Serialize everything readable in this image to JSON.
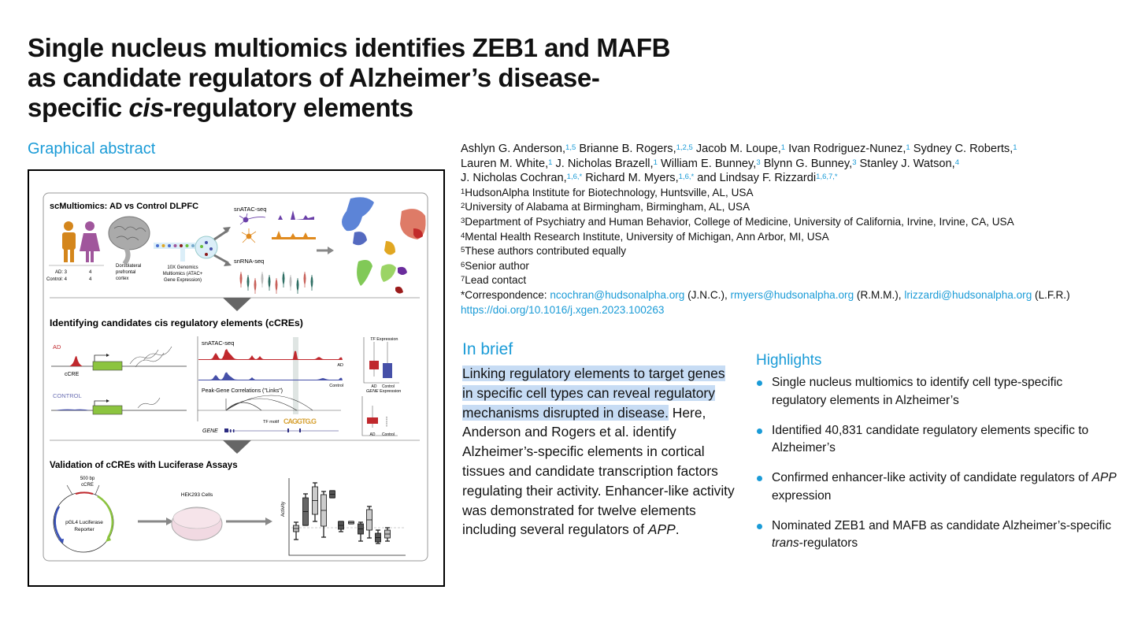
{
  "title": {
    "line1": "Single nucleus multiomics identifies ZEB1 and MAFB",
    "line2": "as candidate regulators of Alzheimer’s disease-",
    "line3_pre": "specific ",
    "line3_italic": "cis",
    "line3_post": "-regulatory elements"
  },
  "graphical_abstract": {
    "label": "Graphical abstract",
    "panel1": {
      "title": "scMultiomics: AD vs Control DLPFC",
      "ad_row": "AD:  3",
      "ad_val2": "4",
      "control_row": "Control:  4",
      "control_val2": "4",
      "brain_label": [
        "Dorsolateral",
        "prefrontal",
        "cortex"
      ],
      "device_label": [
        "10X Genomics",
        "Multiomics (ATAC+",
        "Gene Expression)"
      ],
      "atac": "snATAC-seq",
      "rna": "snRNA-seq"
    },
    "panel2": {
      "title": "Identifying candidates cis regulatory elements (cCREs)",
      "ad": "AD",
      "ccre": "cCRE",
      "control": "CONTROL",
      "atac": "snATAC-seq",
      "track_ad": "AD",
      "track_control": "Control",
      "links": "Peak-Gene Correlations (\"Links\")",
      "tf_motif": "TF motif",
      "motif_letters": "CAGGTG.G",
      "gene": "GENE",
      "tf_expr_italic": "TF",
      "tf_expr": " Expression",
      "gene_expr_italic": "GENE",
      "gene_expr": " Expression",
      "x_ad": "AD",
      "x_control": "Control"
    },
    "panel3": {
      "title": "Validation of cCREs with Luciferase Assays",
      "insert": [
        "500 bp",
        "cCRE"
      ],
      "plasmid": [
        "pGL4 Luciferase",
        "Reporter"
      ],
      "cells": "HEK293 Cells",
      "ylabel": "Activity"
    },
    "colors": {
      "male": "#d4861c",
      "female": "#a0569c",
      "ad": "#c0282d",
      "control": "#4650a8",
      "gene_box": "#8cc43f"
    }
  },
  "authors": [
    {
      "name": "Ashlyn G. Anderson,",
      "sup": "1,5"
    },
    {
      "name": "Brianne B. Rogers,",
      "sup": "1,2,5"
    },
    {
      "name": "Jacob M. Loupe,",
      "sup": "1"
    },
    {
      "name": "Ivan Rodriguez-Nunez,",
      "sup": "1"
    },
    {
      "name": "Sydney C. Roberts,",
      "sup": "1"
    },
    {
      "name": "Lauren M. White,",
      "sup": "1"
    },
    {
      "name": "J. Nicholas Brazell,",
      "sup": "1"
    },
    {
      "name": "William E. Bunney,",
      "sup": "3"
    },
    {
      "name": "Blynn G. Bunney,",
      "sup": "3"
    },
    {
      "name": "Stanley J. Watson,",
      "sup": "4"
    },
    {
      "name": "J. Nicholas Cochran,",
      "sup": "1,6,*"
    },
    {
      "name": "Richard M. Myers,",
      "sup": "1,6,*"
    },
    {
      "name": "and Lindsay F. Rizzardi",
      "sup": "1,6,7,*"
    }
  ],
  "affiliations": [
    {
      "num": "1",
      "text": "HudsonAlpha Institute for Biotechnology, Huntsville, AL, USA"
    },
    {
      "num": "2",
      "text": "University of Alabama at Birmingham, Birmingham, AL, USA"
    },
    {
      "num": "3",
      "text": "Department of Psychiatry and Human Behavior, College of Medicine, University of California, Irvine, Irvine, CA, USA"
    },
    {
      "num": "4",
      "text": "Mental Health Research Institute, University of Michigan, Ann Arbor, MI, USA"
    },
    {
      "num": "5",
      "text": "These authors contributed equally"
    },
    {
      "num": "6",
      "text": "Senior author"
    },
    {
      "num": "7",
      "text": "Lead contact"
    }
  ],
  "correspondence": {
    "label": "*Correspondence: ",
    "contacts": [
      {
        "email": "ncochran@hudsonalpha.org",
        "initials": " (J.N.C.), "
      },
      {
        "email": "rmyers@hudsonalpha.org",
        "initials": " (R.M.M.), "
      },
      {
        "email": "lrizzardi@hudsonalpha.org",
        "initials": " (L.F.R.)"
      }
    ],
    "doi": "https://doi.org/10.1016/j.xgen.2023.100263"
  },
  "in_brief": {
    "heading": "In brief",
    "highlighted": "Linking regulatory elements to target genes in specific cell types can reveal regulatory mechanisms disrupted in disease.",
    "body": " Here, Anderson and Rogers et al. identify Alzheimer’s-specific elements in cortical tissues and candidate transcription factors regulating their activity. Enhancer-like activity was demonstrated for twelve elements including several regulators of ",
    "body_italic": "APP",
    "body_end": ".",
    "highlight_color": "#c7dcf4"
  },
  "highlights": {
    "heading": "Highlights",
    "items": [
      {
        "pre": "Single nucleus multiomics to identify cell type-specific regulatory elements in Alzheimer’s",
        "italic": "",
        "post": ""
      },
      {
        "pre": "Identified 40,831 candidate regulatory elements specific to Alzheimer’s",
        "italic": "",
        "post": ""
      },
      {
        "pre": "Confirmed enhancer-like activity of candidate regulators of ",
        "italic": "APP",
        "post": " expression"
      },
      {
        "pre": "Nominated ZEB1 and MAFB as candidate Alzheimer’s-specific ",
        "italic": "trans",
        "post": "-regulators"
      }
    ]
  },
  "accent_color": "#1a9bd7"
}
